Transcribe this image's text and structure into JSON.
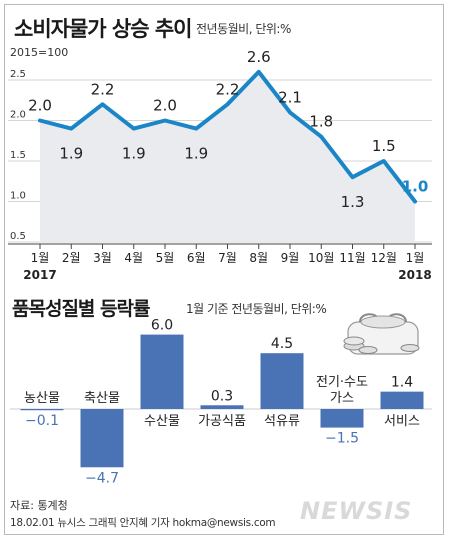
{
  "header": {
    "title": "소비자물가 상승 추이",
    "subtitle": "전년동월비, 단위:%",
    "base_note": "2015=100"
  },
  "section2": {
    "title": "품목성질별 등락률",
    "subtitle": "1월 기준 전년동월비, 단위:%"
  },
  "footer": {
    "source": "자료: 통계청",
    "credit": "18.02.01 뉴시스 그래픽 안지혜 기자 hokma@newsis.com",
    "watermark": "NEWSIS"
  },
  "colors": {
    "line": "#1a86c8",
    "area": "#e9ebef",
    "bar": "#4a73b5",
    "grid": "#c9c9c9"
  },
  "chart_data": [
    {
      "type": "line",
      "title": "소비자물가 상승 추이",
      "x": [
        "1월",
        "2월",
        "3월",
        "4월",
        "5월",
        "6월",
        "7월",
        "8월",
        "9월",
        "10월",
        "11월",
        "12월",
        "1월"
      ],
      "year_labels": [
        "2017",
        "2018"
      ],
      "values": [
        2.0,
        1.9,
        2.2,
        1.9,
        2.0,
        1.9,
        2.2,
        2.6,
        2.1,
        1.8,
        1.3,
        1.5,
        1.0
      ],
      "value_labels": [
        "2.0",
        "1.9",
        "2.2",
        "1.9",
        "2.0",
        "1.9",
        "2.2",
        "2.6",
        "2.1",
        "1.8",
        "1.3",
        "1.5",
        "1.0"
      ],
      "yticks": [
        "0.5",
        "1.0",
        "1.5",
        "2.0",
        "2.5"
      ],
      "ylim": [
        0.5,
        2.5
      ],
      "grid": true
    },
    {
      "type": "bar",
      "title": "품목성질별 등락률",
      "categories": [
        "농산물",
        "축산물",
        "수산물",
        "가공식품",
        "석유류",
        "전기·수도·가스",
        "서비스"
      ],
      "category_labels": [
        [
          "농산물"
        ],
        [
          "축산물"
        ],
        [
          "수산물"
        ],
        [
          "가공식품"
        ],
        [
          "석유류"
        ],
        [
          "전기·수도",
          "가스"
        ],
        [
          "서비스"
        ]
      ],
      "values": [
        -0.1,
        -4.7,
        6.0,
        0.3,
        4.5,
        -1.5,
        1.4
      ],
      "value_labels": [
        "−0.1",
        "−4.7",
        "6.0",
        "0.3",
        "4.5",
        "−1.5",
        "1.4"
      ]
    }
  ]
}
